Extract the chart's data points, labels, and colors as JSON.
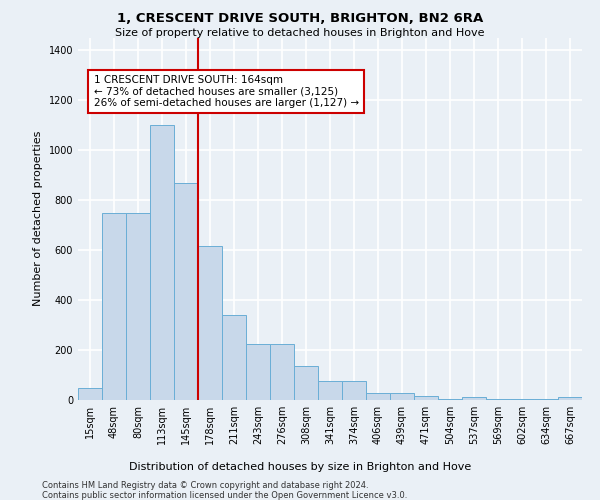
{
  "title": "1, CRESCENT DRIVE SOUTH, BRIGHTON, BN2 6RA",
  "subtitle": "Size of property relative to detached houses in Brighton and Hove",
  "xlabel": "Distribution of detached houses by size in Brighton and Hove",
  "ylabel": "Number of detached properties",
  "footnote1": "Contains HM Land Registry data © Crown copyright and database right 2024.",
  "footnote2": "Contains public sector information licensed under the Open Government Licence v3.0.",
  "bar_labels": [
    "15sqm",
    "48sqm",
    "80sqm",
    "113sqm",
    "145sqm",
    "178sqm",
    "211sqm",
    "243sqm",
    "276sqm",
    "308sqm",
    "341sqm",
    "374sqm",
    "406sqm",
    "439sqm",
    "471sqm",
    "504sqm",
    "537sqm",
    "569sqm",
    "602sqm",
    "634sqm",
    "667sqm"
  ],
  "bar_heights": [
    50,
    750,
    750,
    1100,
    870,
    615,
    340,
    225,
    225,
    135,
    75,
    75,
    30,
    30,
    18,
    5,
    12,
    5,
    5,
    5,
    12
  ],
  "bar_color": "#c8d8ea",
  "bar_edgecolor": "#6aaed6",
  "vline_x": 4.5,
  "vline_color": "#cc0000",
  "annotation_text": "1 CRESCENT DRIVE SOUTH: 164sqm\n← 73% of detached houses are smaller (3,125)\n26% of semi-detached houses are larger (1,127) →",
  "ylim": [
    0,
    1450
  ],
  "bg_color": "#eaf0f6",
  "plot_bg_color": "#eaf0f6",
  "grid_color": "#ffffff"
}
